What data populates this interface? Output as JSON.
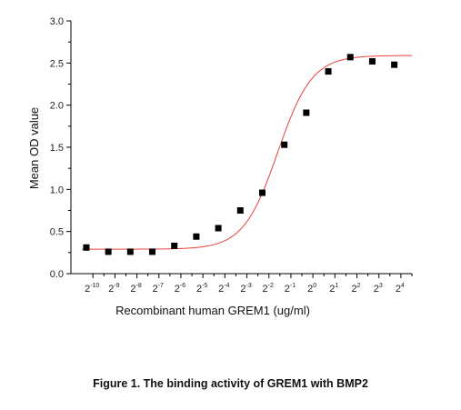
{
  "chart_data": {
    "type": "scatter",
    "xlabel": "Recombinant human GREM1 (ug/ml)",
    "ylabel": "Mean OD value",
    "x_scale": "log2",
    "xlim": [
      -11,
      4.5
    ],
    "ylim": [
      0,
      3.0
    ],
    "grid": false,
    "yticks": [
      "0.0",
      "0.5",
      "1.0",
      "1.5",
      "2.0",
      "2.5",
      "3.0"
    ],
    "xticks": [
      {
        "base": "2",
        "exp": "-10"
      },
      {
        "base": "2",
        "exp": "-9"
      },
      {
        "base": "2",
        "exp": "-8"
      },
      {
        "base": "2",
        "exp": "-7"
      },
      {
        "base": "2",
        "exp": "-6"
      },
      {
        "base": "2",
        "exp": "-5"
      },
      {
        "base": "2",
        "exp": "-4"
      },
      {
        "base": "2",
        "exp": "-3"
      },
      {
        "base": "2",
        "exp": "-2"
      },
      {
        "base": "2",
        "exp": "-1"
      },
      {
        "base": "2",
        "exp": "0"
      },
      {
        "base": "2",
        "exp": "1"
      },
      {
        "base": "2",
        "exp": "2"
      },
      {
        "base": "2",
        "exp": "3"
      },
      {
        "base": "2",
        "exp": "4"
      }
    ],
    "series": [
      {
        "marker": "square",
        "color": "#000000",
        "points": [
          {
            "x_log2": -10.3,
            "y": 0.31
          },
          {
            "x_log2": -9.3,
            "y": 0.26
          },
          {
            "x_log2": -8.3,
            "y": 0.26
          },
          {
            "x_log2": -7.3,
            "y": 0.26
          },
          {
            "x_log2": -6.3,
            "y": 0.33
          },
          {
            "x_log2": -5.3,
            "y": 0.44
          },
          {
            "x_log2": -4.3,
            "y": 0.54
          },
          {
            "x_log2": -3.3,
            "y": 0.75
          },
          {
            "x_log2": -2.3,
            "y": 0.96
          },
          {
            "x_log2": -1.3,
            "y": 1.53
          },
          {
            "x_log2": -0.3,
            "y": 1.91
          },
          {
            "x_log2": 0.7,
            "y": 2.4
          },
          {
            "x_log2": 1.7,
            "y": 2.57
          },
          {
            "x_log2": 2.7,
            "y": 2.52
          },
          {
            "x_log2": 3.7,
            "y": 2.48
          }
        ]
      },
      {
        "type": "line",
        "color": "#e8413b",
        "fit": "four-parameter logistic",
        "bottom": 0.29,
        "top": 2.59,
        "midpoint_x_log2": -1.6,
        "slope_per_log2": 0.78
      }
    ]
  },
  "caption": "Figure 1. The binding activity of GREM1 with BMP2"
}
